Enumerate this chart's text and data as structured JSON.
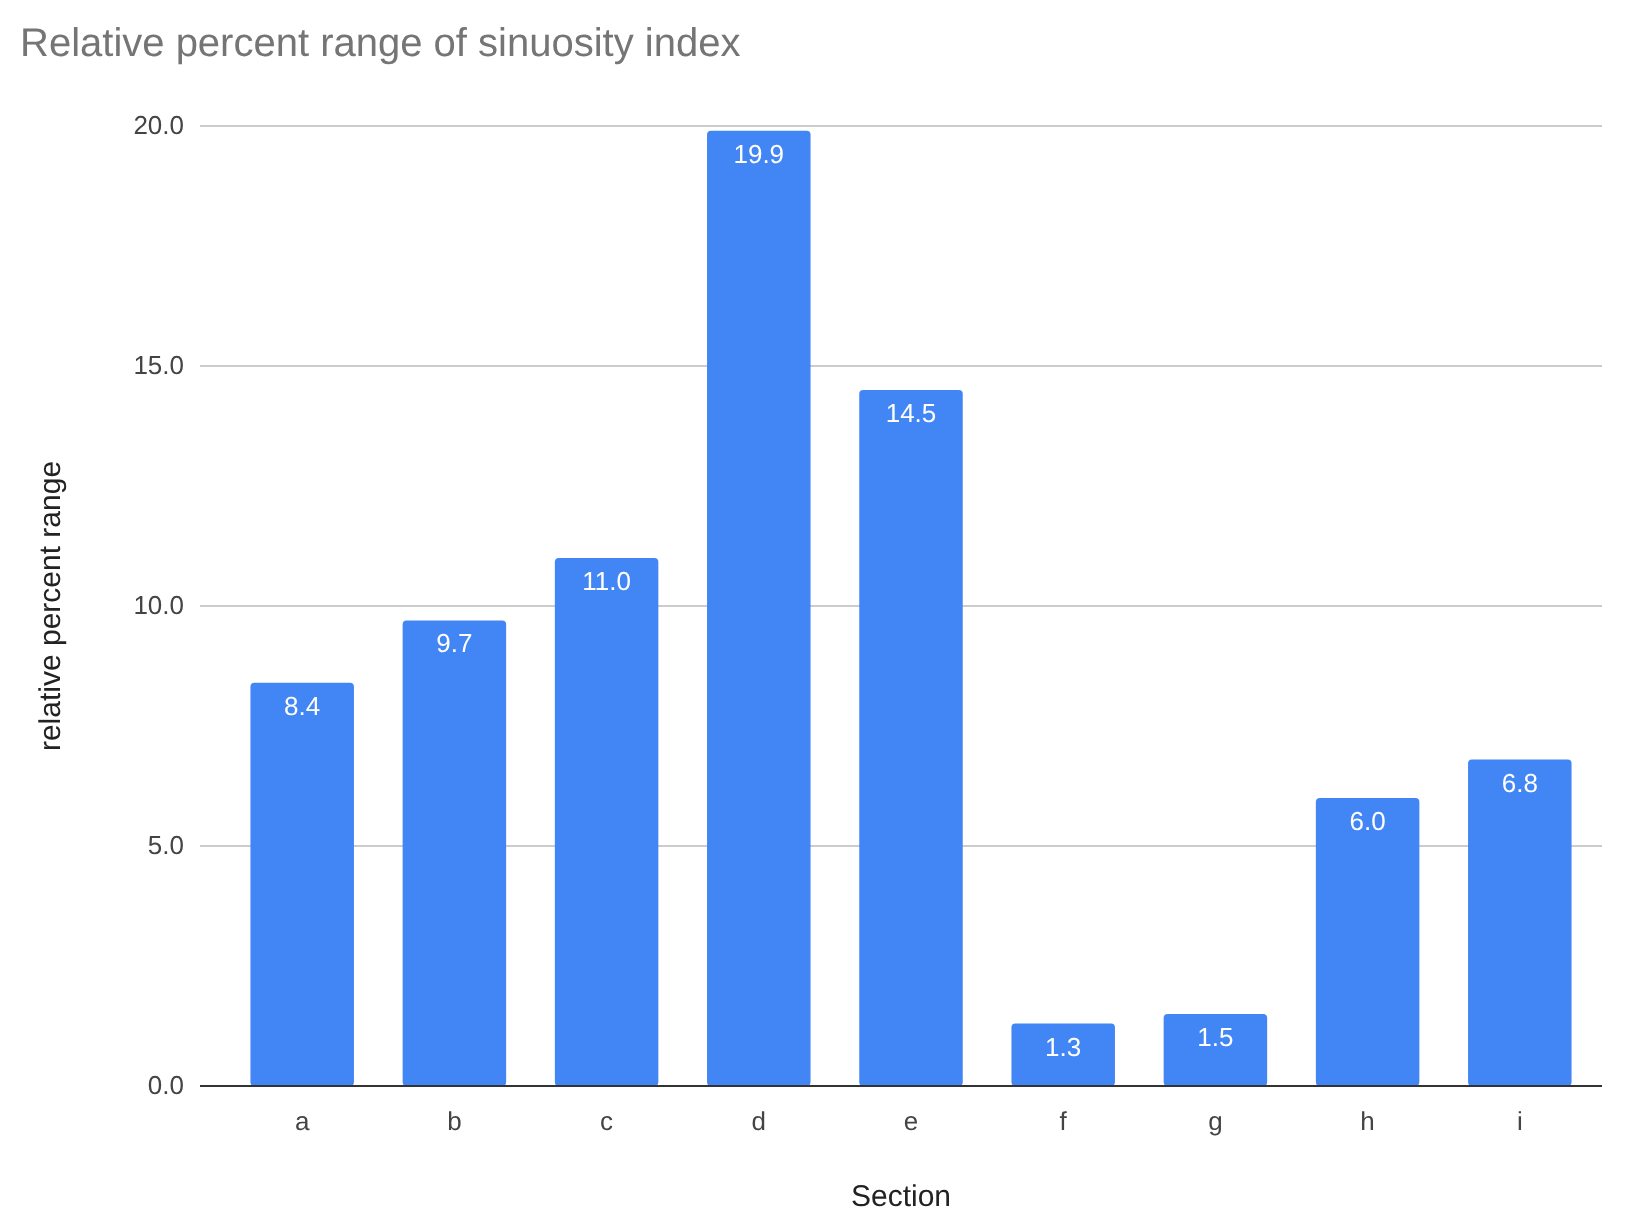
{
  "chart_data": {
    "type": "bar",
    "title": "Relative percent range of sinuosity index",
    "xlabel": "Section",
    "ylabel": "relative percent range",
    "categories": [
      "a",
      "b",
      "c",
      "d",
      "e",
      "f",
      "g",
      "h",
      "i"
    ],
    "values": [
      8.4,
      9.7,
      11.0,
      19.9,
      14.5,
      1.3,
      1.5,
      6.0,
      6.8
    ],
    "value_labels": [
      "8.4",
      "9.7",
      "11.0",
      "19.9",
      "14.5",
      "1.3",
      "1.5",
      "6.0",
      "6.8"
    ],
    "color": "#4285f4",
    "ylim": [
      0,
      20
    ],
    "yticks": [
      {
        "value": 0,
        "label": "0.0"
      },
      {
        "value": 5,
        "label": "5.0"
      },
      {
        "value": 10,
        "label": "10.0"
      },
      {
        "value": 15,
        "label": "15.0"
      },
      {
        "value": 20,
        "label": "20.0"
      }
    ],
    "grid": "y"
  }
}
